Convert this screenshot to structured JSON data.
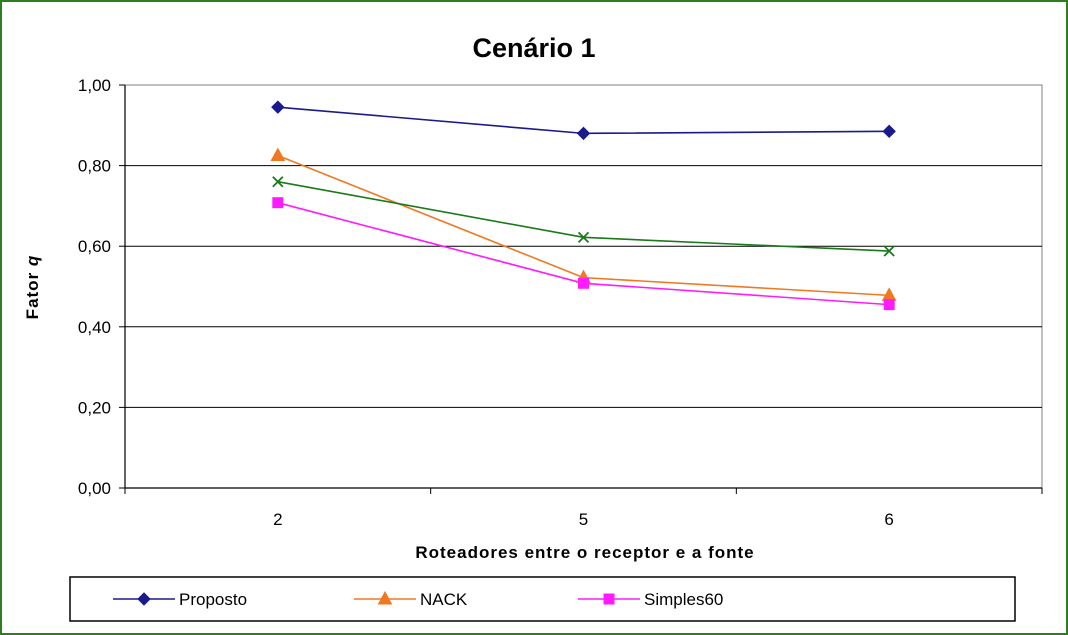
{
  "chart_data": {
    "type": "line",
    "title": "Cenário 1",
    "xlabel": "Roteadores entre o receptor e a fonte",
    "ylabel_main": "Fator ",
    "ylabel_var": "q",
    "categories": [
      "2",
      "5",
      "6"
    ],
    "ylim": [
      0,
      1
    ],
    "yticks": [
      0,
      0.2,
      0.4,
      0.6,
      0.8,
      1.0
    ],
    "ytick_labels": [
      "0,00",
      "0,20",
      "0,40",
      "0,60",
      "0,80",
      "1,00"
    ],
    "grid": true,
    "legend_position": "bottom",
    "series": [
      {
        "name": "Proposto",
        "values": [
          0.945,
          0.88,
          0.885
        ],
        "color": "#1a1a8c",
        "marker": "diamond",
        "in_legend": true
      },
      {
        "name": "NACK",
        "values": [
          0.825,
          0.522,
          0.478
        ],
        "color": "#f07820",
        "marker": "triangle",
        "in_legend": true
      },
      {
        "name": "Simples60",
        "values": [
          0.708,
          0.508,
          0.455
        ],
        "color": "#ff1aff",
        "marker": "square",
        "in_legend": true
      },
      {
        "name": "",
        "values": [
          0.76,
          0.622,
          0.588
        ],
        "color": "#1a7a1a",
        "marker": "x",
        "in_legend": false
      }
    ]
  },
  "colors": {
    "frame_border": "#2e7d1e",
    "gridline": "#000000"
  }
}
